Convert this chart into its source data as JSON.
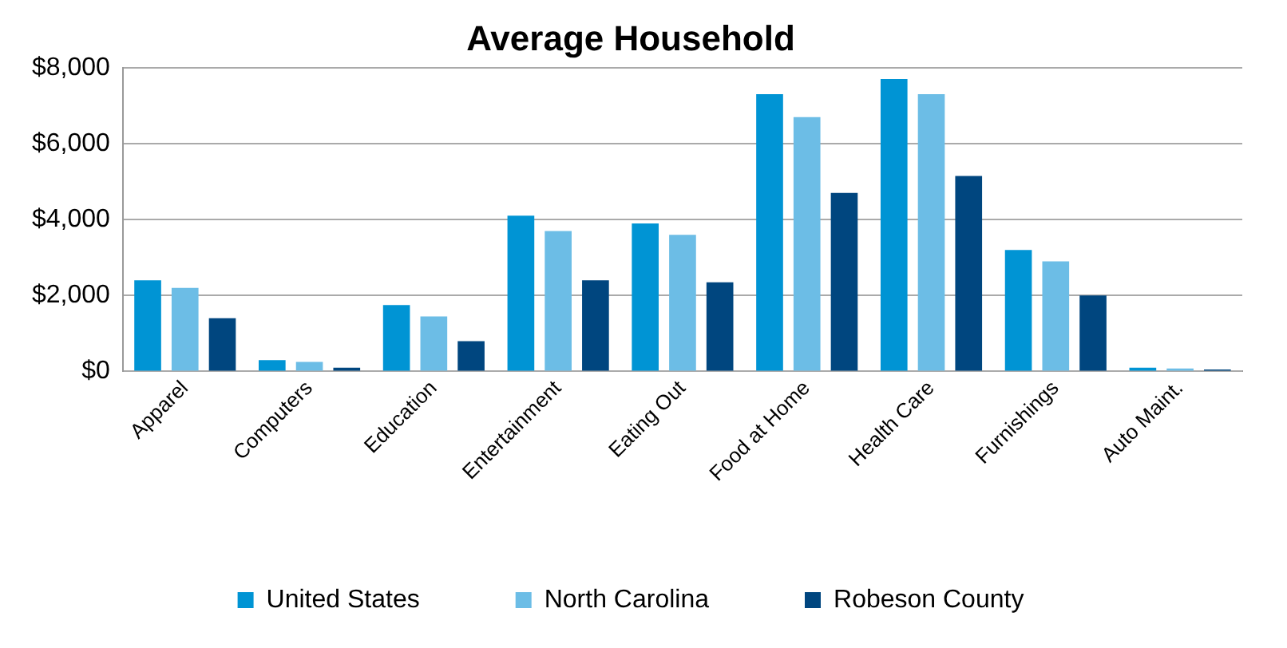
{
  "chart_data": {
    "type": "bar",
    "title": "Average Household",
    "categories": [
      "Apparel",
      "Computers",
      "Education",
      "Entertainment",
      "Eating Out",
      "Food at Home",
      "Health Care",
      "Furnishings",
      "Auto Maint."
    ],
    "series": [
      {
        "name": "United States",
        "color": "#0094d4",
        "values": [
          2400,
          300,
          1750,
          4100,
          3900,
          7300,
          7700,
          3200,
          100
        ]
      },
      {
        "name": "North Carolina",
        "color": "#6cbde6",
        "values": [
          2200,
          250,
          1450,
          3700,
          3600,
          6700,
          7300,
          2900,
          80
        ]
      },
      {
        "name": "Robeson County",
        "color": "#00467f",
        "values": [
          1400,
          100,
          800,
          2400,
          2350,
          4700,
          5150,
          2000,
          50
        ]
      }
    ],
    "ylim": [
      0,
      8000
    ],
    "yticks": [
      {
        "value": 0,
        "label": "$0"
      },
      {
        "value": 2000,
        "label": "$2,000"
      },
      {
        "value": 4000,
        "label": "$4,000"
      },
      {
        "value": 6000,
        "label": "$6,000"
      },
      {
        "value": 8000,
        "label": "$8,000"
      }
    ],
    "grid": "y",
    "legend": "bottom"
  }
}
